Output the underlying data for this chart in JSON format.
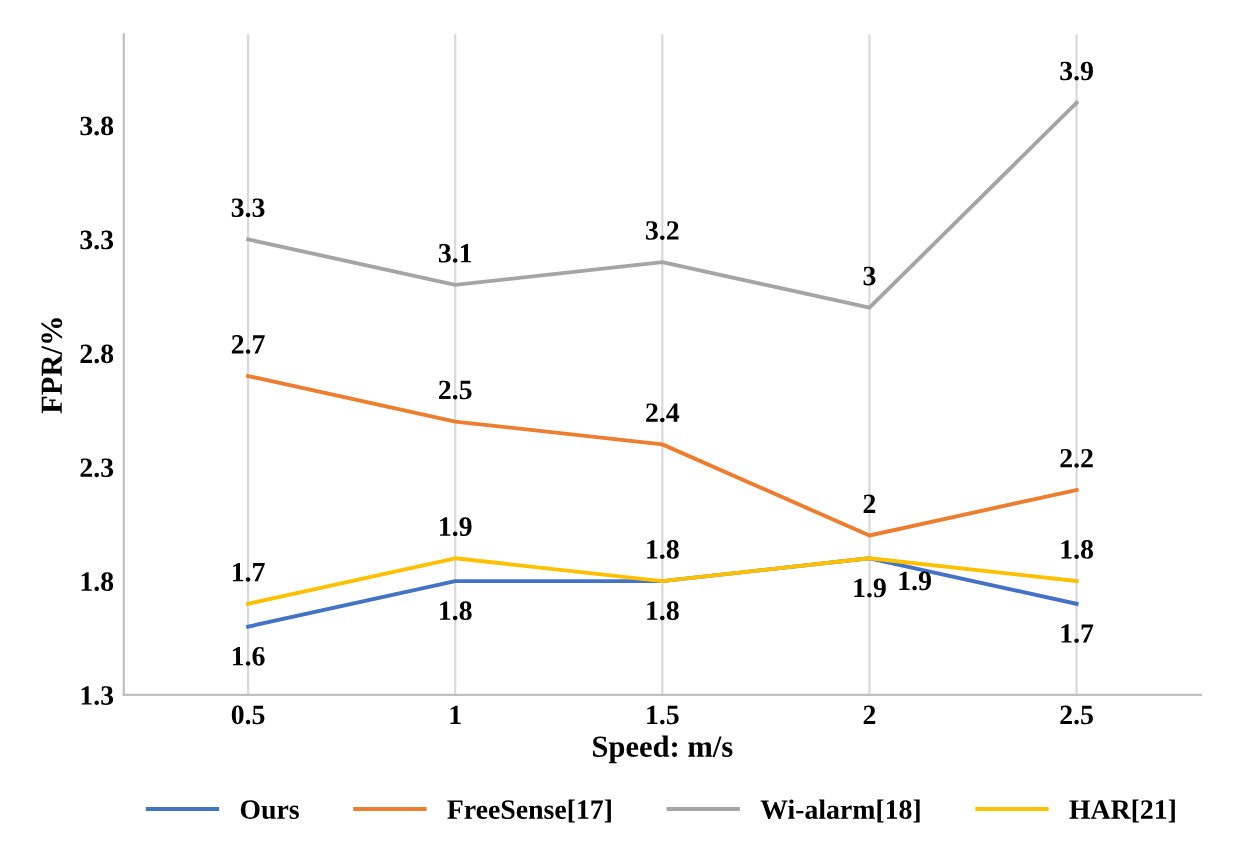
{
  "chart_data": {
    "type": "line",
    "xlabel": "Speed: m/s",
    "ylabel": "FPR/%",
    "categories": [
      "0.5",
      "1",
      "1.5",
      "2",
      "2.5"
    ],
    "series": [
      {
        "name": "Ours",
        "color": "#4472c4",
        "values": [
          1.6,
          1.8,
          1.8,
          1.9,
          1.7
        ]
      },
      {
        "name": "FreeSense[17]",
        "color": "#ed7d31",
        "values": [
          2.7,
          2.5,
          2.4,
          2,
          2.2
        ]
      },
      {
        "name": "Wi-alarm[18]",
        "color": "#a5a5a5",
        "values": [
          3.3,
          3.1,
          3.2,
          3,
          3.9
        ]
      },
      {
        "name": "HAR[21]",
        "color": "#ffc000",
        "values": [
          1.7,
          1.9,
          1.8,
          1.9,
          1.8
        ]
      }
    ],
    "ylim": [
      1.3,
      4.2
    ],
    "yticks": [
      1.3,
      1.8,
      2.3,
      2.8,
      3.3,
      3.8
    ],
    "grid": "x",
    "legend": "bottom",
    "data_labels": true,
    "marker": "none",
    "line_style": "solid"
  }
}
